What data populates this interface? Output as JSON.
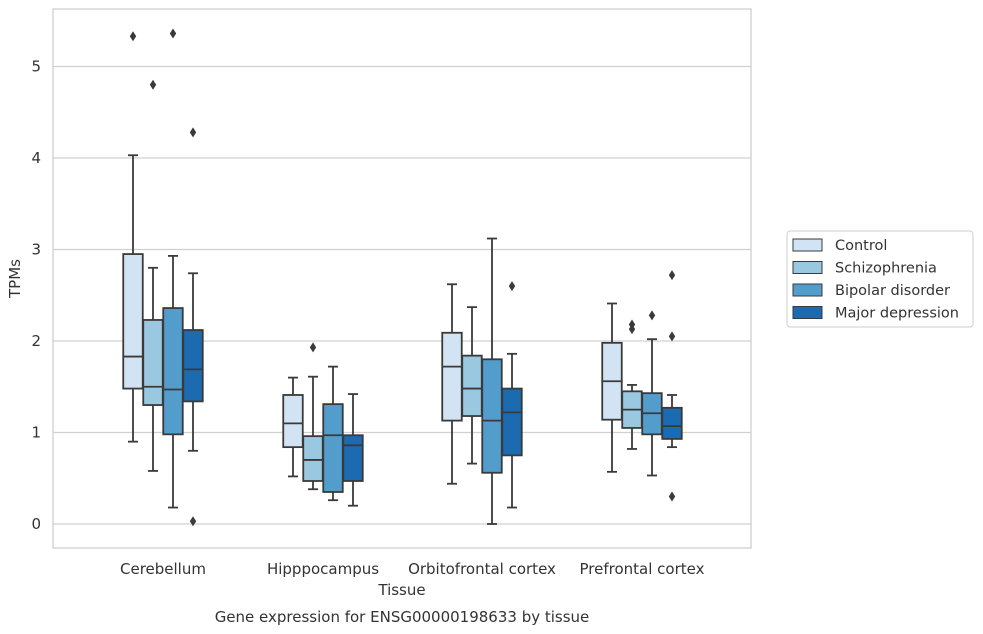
{
  "chart_data": {
    "type": "boxplot",
    "title": "",
    "caption": "Gene expression for ENSG00000198633 by tissue",
    "xlabel": "Tissue",
    "ylabel": "TPMs",
    "ylim": [
      -0.25,
      5.62
    ],
    "yticks": [
      0,
      1,
      2,
      3,
      4,
      5
    ],
    "grid": true,
    "legend_position": "right",
    "categories": [
      "Cerebellum",
      "Hipppocampus",
      "Orbitofrontal cortex",
      "Prefrontal cortex"
    ],
    "series": [
      {
        "name": "Control",
        "color": "#d2e3f3",
        "boxes": [
          {
            "whislo": 0.9,
            "q1": 1.48,
            "med": 1.83,
            "q3": 2.95,
            "whishi": 4.03,
            "fliers": [
              5.33
            ]
          },
          {
            "whislo": 0.52,
            "q1": 0.84,
            "med": 1.1,
            "q3": 1.41,
            "whishi": 1.6,
            "fliers": []
          },
          {
            "whislo": 0.44,
            "q1": 1.13,
            "med": 1.72,
            "q3": 2.09,
            "whishi": 2.62,
            "fliers": []
          },
          {
            "whislo": 0.57,
            "q1": 1.14,
            "med": 1.56,
            "q3": 1.98,
            "whishi": 2.41,
            "fliers": []
          }
        ]
      },
      {
        "name": "Schizophrenia",
        "color": "#9ac8e0",
        "boxes": [
          {
            "whislo": 0.58,
            "q1": 1.3,
            "med": 1.5,
            "q3": 2.23,
            "whishi": 2.8,
            "fliers": [
              4.8
            ]
          },
          {
            "whislo": 0.38,
            "q1": 0.47,
            "med": 0.7,
            "q3": 0.96,
            "whishi": 1.61,
            "fliers": [
              1.93
            ]
          },
          {
            "whislo": 0.66,
            "q1": 1.18,
            "med": 1.48,
            "q3": 1.84,
            "whishi": 2.37,
            "fliers": []
          },
          {
            "whislo": 0.82,
            "q1": 1.05,
            "med": 1.25,
            "q3": 1.45,
            "whishi": 1.52,
            "fliers": [
              2.13,
              2.18
            ]
          }
        ]
      },
      {
        "name": "Bipolar disorder",
        "color": "#529dcc",
        "boxes": [
          {
            "whislo": 0.18,
            "q1": 0.98,
            "med": 1.47,
            "q3": 2.36,
            "whishi": 2.93,
            "fliers": [
              5.36
            ]
          },
          {
            "whislo": 0.26,
            "q1": 0.35,
            "med": 0.97,
            "q3": 1.31,
            "whishi": 1.72,
            "fliers": []
          },
          {
            "whislo": 0.0,
            "q1": 0.56,
            "med": 1.13,
            "q3": 1.8,
            "whishi": 3.12,
            "fliers": []
          },
          {
            "whislo": 0.53,
            "q1": 0.98,
            "med": 1.21,
            "q3": 1.43,
            "whishi": 2.02,
            "fliers": [
              2.28
            ]
          }
        ]
      },
      {
        "name": "Major depression",
        "color": "#1c6aaf",
        "boxes": [
          {
            "whislo": 0.8,
            "q1": 1.34,
            "med": 1.69,
            "q3": 2.12,
            "whishi": 2.74,
            "fliers": [
              4.28,
              0.03
            ]
          },
          {
            "whislo": 0.2,
            "q1": 0.47,
            "med": 0.86,
            "q3": 0.97,
            "whishi": 1.42,
            "fliers": []
          },
          {
            "whislo": 0.18,
            "q1": 0.75,
            "med": 1.22,
            "q3": 1.48,
            "whishi": 1.86,
            "fliers": [
              2.6
            ]
          },
          {
            "whislo": 0.84,
            "q1": 0.93,
            "med": 1.07,
            "q3": 1.27,
            "whishi": 1.41,
            "fliers": [
              2.72,
              2.05,
              0.3
            ]
          }
        ]
      }
    ]
  }
}
